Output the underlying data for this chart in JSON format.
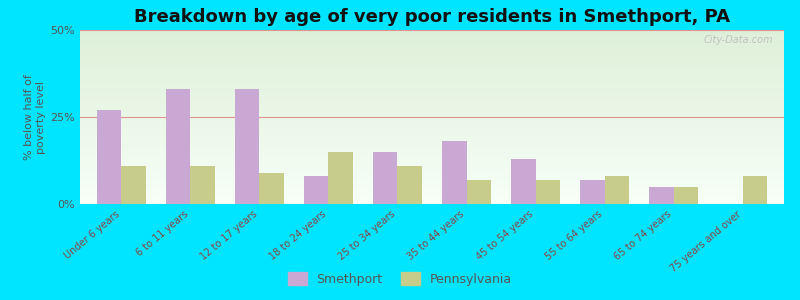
{
  "title": "Breakdown by age of very poor residents in Smethport, PA",
  "categories": [
    "Under 6 years",
    "6 to 11 years",
    "12 to 17 years",
    "18 to 24 years",
    "25 to 34 years",
    "35 to 44 years",
    "45 to 54 years",
    "55 to 64 years",
    "65 to 74 years",
    "75 years and over"
  ],
  "smethport_values": [
    27,
    33,
    33,
    8,
    15,
    18,
    13,
    7,
    5,
    0
  ],
  "pennsylvania_values": [
    11,
    11,
    9,
    15,
    11,
    7,
    7,
    8,
    5,
    8
  ],
  "smethport_color": "#c9a8d4",
  "pennsylvania_color": "#c8cc8a",
  "background_outer": "#00e5ff",
  "ylabel": "% below half of\npoverty level",
  "ylim": [
    0,
    50
  ],
  "yticks": [
    0,
    25,
    50
  ],
  "ytick_labels": [
    "0%",
    "25%",
    "50%"
  ],
  "title_fontsize": 13,
  "label_fontsize": 7,
  "tick_fontsize": 8,
  "bar_width": 0.35,
  "watermark": "City-Data.com",
  "xlabel_color": "#884444",
  "ylabel_color": "#555555",
  "ytick_color": "#555555",
  "grid_color": "#e08888",
  "legend_label_color": "#555555"
}
